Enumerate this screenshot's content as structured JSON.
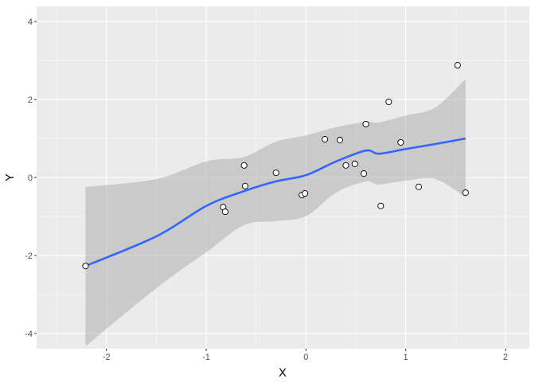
{
  "chart_data": {
    "type": "scatter",
    "title": "",
    "xlabel": "X",
    "ylabel": "Y",
    "xlim": [
      -2.7,
      2.24
    ],
    "ylim": [
      -4.39,
      4.39
    ],
    "xticks": [
      -2,
      -1,
      0,
      1,
      2
    ],
    "yticks": [
      -4,
      -2,
      0,
      2,
      4
    ],
    "grid": true,
    "colors": {
      "panel": "#EBEBEB",
      "grid": "#FFFFFF",
      "line": "#3366FF",
      "ribbon": "#999999",
      "point_fill": "#FFFFFF",
      "point_stroke": "#000000",
      "tick_text": "#4D4D4D"
    },
    "points": [
      {
        "x": -2.21,
        "y": -2.27
      },
      {
        "x": -0.83,
        "y": -0.76
      },
      {
        "x": -0.81,
        "y": -0.88
      },
      {
        "x": -0.62,
        "y": 0.31
      },
      {
        "x": -0.61,
        "y": -0.22
      },
      {
        "x": -0.3,
        "y": 0.12
      },
      {
        "x": -0.04,
        "y": -0.45
      },
      {
        "x": -0.01,
        "y": -0.41
      },
      {
        "x": 0.19,
        "y": 0.98
      },
      {
        "x": 0.34,
        "y": 0.96
      },
      {
        "x": 0.4,
        "y": 0.31
      },
      {
        "x": 0.49,
        "y": 0.35
      },
      {
        "x": 0.58,
        "y": 0.1
      },
      {
        "x": 0.6,
        "y": 1.37
      },
      {
        "x": 0.75,
        "y": -0.73
      },
      {
        "x": 0.83,
        "y": 1.94
      },
      {
        "x": 0.95,
        "y": 0.9
      },
      {
        "x": 1.13,
        "y": -0.24
      },
      {
        "x": 1.52,
        "y": 2.88
      },
      {
        "x": 1.6,
        "y": -0.39
      }
    ],
    "smooth": [
      {
        "x": -2.21,
        "y": -2.27,
        "ymin": -4.33,
        "ymax": -0.24
      },
      {
        "x": -1.5,
        "y": -1.51,
        "ymin": -2.84,
        "ymax": -0.04
      },
      {
        "x": -1.0,
        "y": -0.73,
        "ymin": -1.92,
        "ymax": 0.41
      },
      {
        "x": -0.62,
        "y": -0.35,
        "ymin": -1.22,
        "ymax": 0.53
      },
      {
        "x": -0.3,
        "y": -0.1,
        "ymin": -1.12,
        "ymax": 0.92
      },
      {
        "x": 0.0,
        "y": 0.06,
        "ymin": -0.99,
        "ymax": 1.08
      },
      {
        "x": 0.3,
        "y": 0.41,
        "ymin": -0.39,
        "ymax": 1.29
      },
      {
        "x": 0.6,
        "y": 0.69,
        "ymin": -0.1,
        "ymax": 1.43
      },
      {
        "x": 0.73,
        "y": 0.61,
        "ymin": -0.18,
        "ymax": 1.41
      },
      {
        "x": 1.0,
        "y": 0.73,
        "ymin": -0.08,
        "ymax": 1.59
      },
      {
        "x": 1.3,
        "y": 0.86,
        "ymin": -0.04,
        "ymax": 1.8
      },
      {
        "x": 1.6,
        "y": 1.0,
        "ymin": -0.51,
        "ymax": 2.53
      }
    ]
  }
}
